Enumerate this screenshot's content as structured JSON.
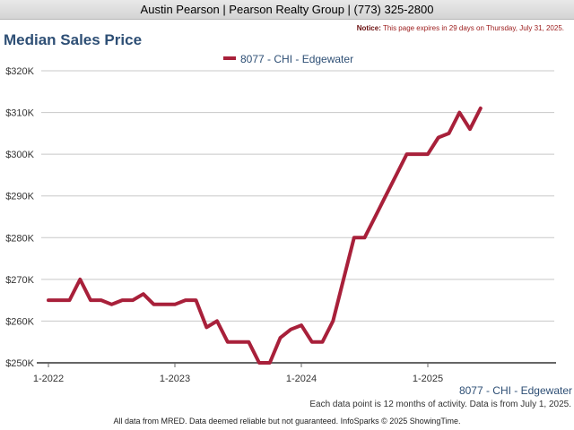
{
  "header": {
    "agent": "Austin Pearson | Pearson Realty Group | (773) 325-2800"
  },
  "notice": {
    "label": "Notice:",
    "text": "This page expires in 29 days on Thursday, July 31, 2025."
  },
  "footnote": "Each data point is 12 months of activity. Data is from July 1, 2025.",
  "credits": "All data from MRED. Data deemed reliable but not guaranteed. InfoSparks © 2025 ShowingTime.",
  "chart_data": {
    "type": "line",
    "title": "Median Sales Price",
    "xlabel": "",
    "ylabel": "",
    "series": [
      {
        "name": "8077 - CHI - Edgewater",
        "color": "#a8203a",
        "values": [
          265000,
          265000,
          265000,
          270000,
          265000,
          265000,
          264000,
          265000,
          265000,
          266500,
          264000,
          264000,
          264000,
          265000,
          265000,
          258500,
          260000,
          255000,
          255000,
          255000,
          250000,
          250000,
          256000,
          258000,
          259000,
          255000,
          255000,
          260000,
          270000,
          280000,
          280000,
          285000,
          290000,
          295000,
          300000,
          300000,
          300000,
          304000,
          305000,
          310000,
          306000,
          311000
        ]
      }
    ],
    "x_start": "2022-01",
    "x_interval": "1 month",
    "x_ticks": [
      "1-2022",
      "1-2023",
      "1-2024",
      "1-2025"
    ],
    "y_ticks": [
      "$250K",
      "$260K",
      "$270K",
      "$280K",
      "$290K",
      "$300K",
      "$310K",
      "$320K"
    ],
    "ylim": [
      250000,
      320000
    ],
    "grid": true,
    "legend_position": "top",
    "end_label": "8077 - CHI - Edgewater"
  }
}
